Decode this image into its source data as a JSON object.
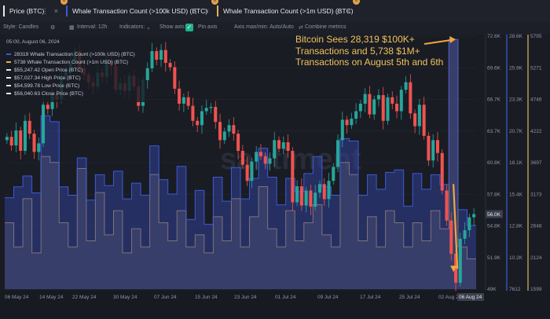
{
  "tabs": [
    {
      "label": "Price (BTC)",
      "color": "#e8e8e8",
      "badge": "0"
    },
    {
      "label": "Whale Transaction Count (>100k USD) (BTC)",
      "color": "#3b5bd6",
      "badge": "0"
    },
    {
      "label": "Whale Transaction Count (>1m USD) (BTC)",
      "color": "#e0b25a",
      "badge": "0"
    }
  ],
  "toolbar": {
    "style": "Style: Candles",
    "interval": "Interval: 12h",
    "indicators": "Indicators:",
    "show_axis": "Show axis",
    "pin_axis": "Pin axis",
    "axis_mode": "Axis max/min: Auto/Auto",
    "combine": "Combine metrics"
  },
  "legend": {
    "date": "05:00, August 06, 2024",
    "items": [
      {
        "text": "28319 Whale Transaction Count (>100k USD) (BTC)",
        "color": "#3b5bd6"
      },
      {
        "text": "5738 Whale Transaction Count (>1m USD) (BTC)",
        "color": "#e0b25a"
      },
      {
        "text": "$55,247.42 Open Price (BTC)",
        "color": "#e8e8e8"
      },
      {
        "text": "$57,027.34 High Price (BTC)",
        "color": "#e8e8e8"
      },
      {
        "text": "$54,599.78 Low Price (BTC)",
        "color": "#e8e8e8"
      },
      {
        "text": "$56,040.63 Close Price (BTC)",
        "color": "#e8e8e8"
      }
    ]
  },
  "annotation": "Bitcoin Sees 28,319 $100K+ Transactions and 5,738 $1M+ Transactions on August 5th and 6th",
  "watermark": "santiment",
  "colors": {
    "up": "#26a69a",
    "down": "#ef5350",
    "whale100k": "#3b5bd6",
    "whale1m": "#e0b25a",
    "annotation": "#f0c35a"
  },
  "chart_data": {
    "type": "line",
    "x_ticks": [
      "06 May 24",
      "14 May 24",
      "22 May 24",
      "30 May 24",
      "07 Jun 24",
      "15 Jun 24",
      "23 Jun 24",
      "01 Jul 24",
      "09 Jul 24",
      "17 Jul 24",
      "25 Jul 24",
      "02 Aug 24",
      "06 Aug 24"
    ],
    "price_axis": {
      "ticks": [
        "72.6K",
        "69.6K",
        "66.7K",
        "63.7K",
        "60.8K",
        "57.8K",
        "54.8K",
        "51.9K",
        "49K"
      ],
      "ylim": [
        49000,
        72600
      ],
      "current_label": "56.0K"
    },
    "whale100k_axis": {
      "ticks": [
        "28.6K",
        "25.9K",
        "23.3K",
        "20.7K",
        "18.1K",
        "15.4K",
        "12.8K",
        "10.2K",
        "7612"
      ],
      "ylim": [
        7612,
        28600
      ]
    },
    "whale1m_axis": {
      "ticks": [
        "5795",
        "5271",
        "4746",
        "4222",
        "3697",
        "3173",
        "2648",
        "2124",
        "1599"
      ],
      "ylim": [
        1599,
        5795
      ]
    },
    "candles_close": [
      63200,
      62400,
      63800,
      61900,
      64700,
      63500,
      61800,
      62600,
      66200,
      65800,
      67200,
      66700,
      68900,
      69400,
      70100,
      71200,
      69600,
      69000,
      68300,
      67900,
      69200,
      68800,
      70300,
      69800,
      67600,
      68200,
      67500,
      68900,
      67900,
      66100,
      68500,
      69600,
      71200,
      70400,
      71300,
      70100,
      69700,
      67700,
      66300,
      66900,
      66100,
      64700,
      64300,
      65600,
      65900,
      66000,
      64600,
      62900,
      63700,
      64300,
      63500,
      61900,
      60600,
      59100,
      60900,
      61800,
      61400,
      60700,
      61200,
      62900,
      62100,
      62700,
      61900,
      57100,
      58600,
      56800,
      58200,
      56700,
      58000,
      58800,
      57400,
      59100,
      60400,
      62900,
      64800,
      64300,
      64900,
      65600,
      66300,
      67200,
      65300,
      66700,
      67100,
      64700,
      66900,
      66300,
      65600,
      67600,
      68300,
      65400,
      64200,
      66200,
      63300,
      61000,
      62900,
      61700,
      58200,
      55400,
      52300,
      49600,
      53700,
      54500,
      55700,
      56000
    ],
    "whale100k": [
      15200,
      15200,
      16100,
      16100,
      17000,
      17000,
      15600,
      15600,
      22000,
      22000,
      21500,
      21500,
      16100,
      16100,
      15400,
      15400,
      18500,
      18500,
      15000,
      15000,
      17100,
      17100,
      16200,
      16200,
      17400,
      17400,
      15100,
      15100,
      16400,
      16400,
      15400,
      15400,
      19500,
      19500,
      16700,
      16700,
      15500,
      15500,
      17800,
      17800,
      13400,
      13400,
      15800,
      15800,
      13000,
      13000,
      16900,
      16900,
      14900,
      14900,
      17700,
      17700,
      15100,
      15100,
      16800,
      16800,
      19300,
      19300,
      16900,
      16900,
      14600,
      14600,
      16800,
      16800,
      15700,
      15700,
      17200,
      17200,
      18600,
      18600,
      16100,
      16100,
      15400,
      15400,
      20100,
      20100,
      19900,
      19900,
      15400,
      15400,
      17100,
      17100,
      15900,
      15900,
      17300,
      17300,
      17500,
      17500,
      14500,
      14500,
      17200,
      17200,
      15900,
      15900,
      17100,
      17100,
      16300,
      16300,
      28319,
      28319,
      14200,
      14200,
      12900,
      12900
    ],
    "whale1m": [
      2700,
      2700,
      2300,
      2300,
      3100,
      3100,
      2200,
      2200,
      3800,
      3800,
      3700,
      3700,
      2700,
      2700,
      2300,
      2300,
      3600,
      3600,
      2400,
      2400,
      3200,
      3200,
      2500,
      2500,
      2900,
      2900,
      2200,
      2200,
      2600,
      2600,
      2300,
      2300,
      3500,
      3500,
      2700,
      2700,
      2400,
      2400,
      2900,
      2900,
      2300,
      2300,
      2500,
      2500,
      2200,
      2200,
      2800,
      2800,
      2400,
      2400,
      3100,
      3100,
      2300,
      2300,
      2800,
      2800,
      3300,
      3300,
      2600,
      2600,
      2300,
      2300,
      2900,
      2900,
      2400,
      2400,
      2700,
      2700,
      3000,
      3000,
      2500,
      2500,
      2300,
      2300,
      3700,
      3700,
      3500,
      3500,
      2400,
      2400,
      2800,
      2800,
      2300,
      2300,
      2900,
      2900,
      2700,
      2700,
      2300,
      2300,
      2700,
      2700,
      2400,
      2400,
      2900,
      2900,
      2600,
      2600,
      5738,
      5738,
      2300,
      2300,
      2100,
      2100
    ]
  }
}
